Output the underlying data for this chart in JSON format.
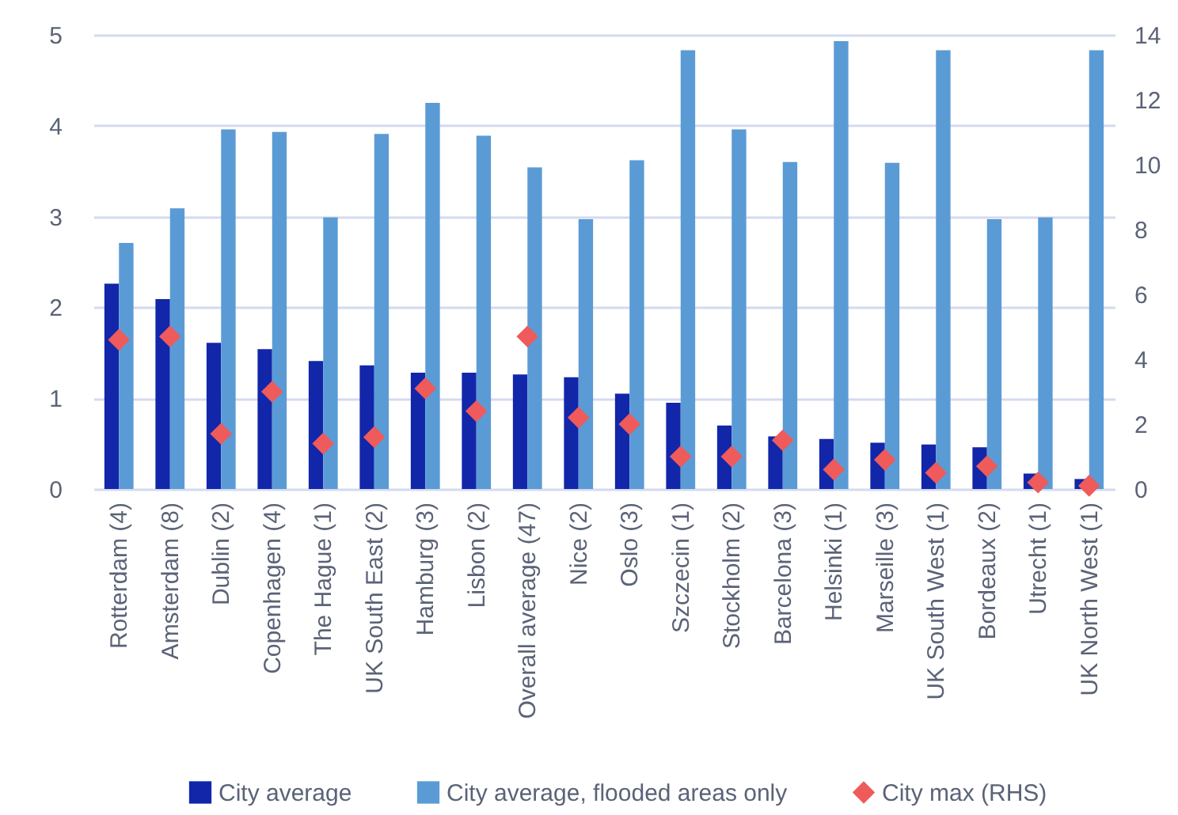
{
  "chart_data": {
    "type": "bar",
    "categories": [
      "Rotterdam (4)",
      "Amsterdam (8)",
      "Dublin (2)",
      "Copenhagen (4)",
      "The Hague (1)",
      "UK South East (2)",
      "Hamburg (3)",
      "Lisbon (2)",
      "Overall average (47)",
      "Nice (2)",
      "Oslo (3)",
      "Szczecin (1)",
      "Stockholm (2)",
      "Barcelona (3)",
      "Helsinki (1)",
      "Marseille (3)",
      "UK South West (1)",
      "Bordeaux (2)",
      "Utrecht (1)",
      "UK North West (1)"
    ],
    "series": [
      {
        "name": "City average",
        "color": "#1226aa",
        "values": [
          2.26,
          2.09,
          1.61,
          1.54,
          1.41,
          1.36,
          1.28,
          1.28,
          1.26,
          1.23,
          1.05,
          0.95,
          0.7,
          0.58,
          0.55,
          0.51,
          0.49,
          0.46,
          0.17,
          0.11
        ]
      },
      {
        "name": "City average, flooded areas only",
        "color": "#5b9bd5",
        "values": [
          2.71,
          3.09,
          3.96,
          3.93,
          2.99,
          3.91,
          4.25,
          3.89,
          3.54,
          2.97,
          3.62,
          4.83,
          3.96,
          3.6,
          4.93,
          3.59,
          4.83,
          2.97,
          2.99,
          4.83
        ]
      },
      {
        "name": "City max (RHS)",
        "type": "scatter",
        "axis": "y2",
        "marker": "diamond",
        "color": "#ef5a5a",
        "values": [
          4.6,
          4.7,
          1.7,
          3.0,
          1.4,
          1.6,
          3.1,
          2.4,
          4.7,
          2.2,
          2.0,
          1.0,
          1.0,
          1.5,
          0.6,
          0.9,
          0.5,
          0.7,
          0.2,
          0.1
        ]
      }
    ],
    "ylim": [
      0,
      5
    ],
    "yticks": [
      0,
      1,
      2,
      3,
      4,
      5
    ],
    "y2lim": [
      0,
      14
    ],
    "y2ticks": [
      0,
      2,
      4,
      6,
      8,
      10,
      12,
      14
    ],
    "grid": "y",
    "legend": "bottom"
  }
}
